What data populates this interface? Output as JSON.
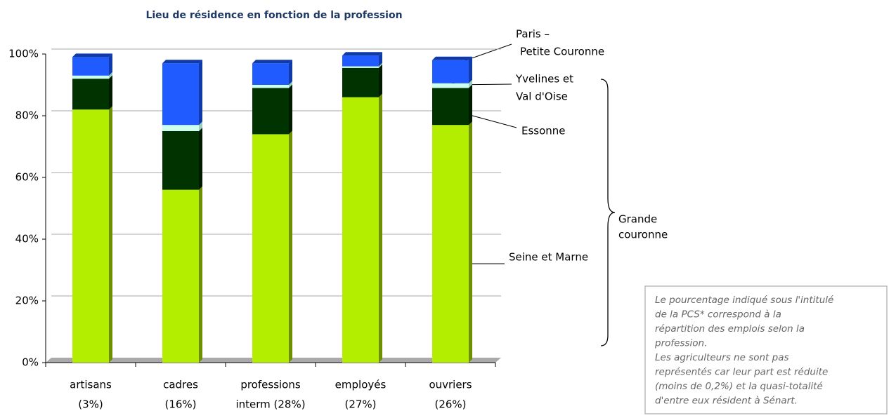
{
  "chart_data": {
    "type": "bar",
    "stacked": true,
    "title": "Lieu de résidence en fonction de la profession",
    "categories": [
      [
        "artisans",
        "(3%)"
      ],
      [
        "cadres",
        "(16%)"
      ],
      [
        "professions",
        "interm (28%)"
      ],
      [
        "employés",
        "(27%)"
      ],
      [
        "ouvriers",
        "(26%)"
      ]
    ],
    "series": [
      {
        "name": [
          "Seine et Marne"
        ],
        "color": "#b3ee00",
        "side": "#6b8f00",
        "values": [
          82,
          56,
          74,
          86,
          77
        ]
      },
      {
        "name": [
          "Essonne"
        ],
        "color": "#003300",
        "side": "#001a00",
        "values": [
          10,
          19,
          15,
          9.5,
          12
        ]
      },
      {
        "name": [
          "Yvelines et",
          "Val d'Oise"
        ],
        "color": "#ccffee",
        "side": "#99ccbb",
        "values": [
          1,
          2,
          1,
          0.5,
          1.5
        ]
      },
      {
        "name": [
          "Paris –",
          "Petite Couronne"
        ],
        "color": "#1f5bff",
        "side": "#0f3aa8",
        "values": [
          6,
          20,
          7,
          3.5,
          7.5
        ]
      }
    ],
    "ylim": [
      0,
      100
    ],
    "yticks": [
      {
        "value": 0,
        "label": "0%"
      },
      {
        "value": 20,
        "label": "20%"
      },
      {
        "value": 40,
        "label": "40%"
      },
      {
        "value": 60,
        "label": "60%"
      },
      {
        "value": 80,
        "label": "80%"
      },
      {
        "value": 100,
        "label": "100%"
      }
    ],
    "grid": true,
    "group_label": [
      "Grande",
      "couronne"
    ],
    "note": [
      "Le pourcentage indiqué sous l'intitulé",
      "de la PCS* correspond à  la",
      "répartition des emplois  selon la",
      "profession.",
      "Les agriculteurs ne sont pas",
      "représentés car leur part est réduite",
      "(moins de 0,2%) et la quasi-totalité",
      "d'entre eux résident à Sénart."
    ]
  }
}
